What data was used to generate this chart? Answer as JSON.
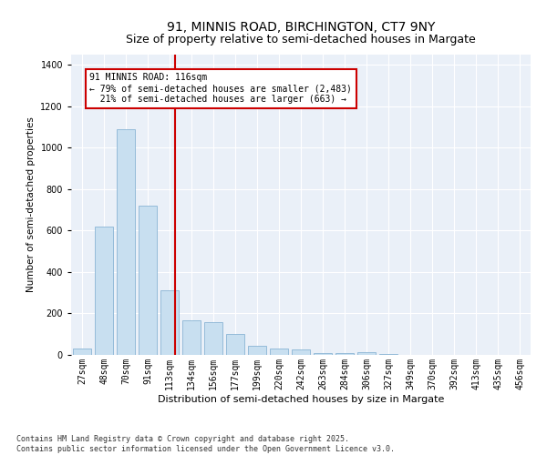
{
  "title1": "91, MINNIS ROAD, BIRCHINGTON, CT7 9NY",
  "title2": "Size of property relative to semi-detached houses in Margate",
  "xlabel": "Distribution of semi-detached houses by size in Margate",
  "ylabel": "Number of semi-detached properties",
  "categories": [
    "27sqm",
    "48sqm",
    "70sqm",
    "91sqm",
    "113sqm",
    "134sqm",
    "156sqm",
    "177sqm",
    "199sqm",
    "220sqm",
    "242sqm",
    "263sqm",
    "284sqm",
    "306sqm",
    "327sqm",
    "349sqm",
    "370sqm",
    "392sqm",
    "413sqm",
    "435sqm",
    "456sqm"
  ],
  "values": [
    30,
    620,
    1090,
    720,
    310,
    165,
    160,
    100,
    45,
    32,
    28,
    10,
    8,
    14,
    3,
    2,
    1,
    1,
    0,
    0,
    0
  ],
  "bar_color": "#c8dff0",
  "bar_edge_color": "#8ab4d4",
  "vline_color": "#cc0000",
  "vline_pos": 4.27,
  "annotation_line1": "91 MINNIS ROAD: 116sqm",
  "annotation_line2": "← 79% of semi-detached houses are smaller (2,483)",
  "annotation_line3": "  21% of semi-detached houses are larger (663) →",
  "annotation_box_color": "#ffffff",
  "annotation_box_edge": "#cc0000",
  "ylim": [
    0,
    1450
  ],
  "yticks": [
    0,
    200,
    400,
    600,
    800,
    1000,
    1200,
    1400
  ],
  "background_color": "#eaf0f8",
  "footer_text": "Contains HM Land Registry data © Crown copyright and database right 2025.\nContains public sector information licensed under the Open Government Licence v3.0.",
  "title_fontsize": 10,
  "tick_fontsize": 7,
  "ylabel_fontsize": 7.5,
  "xlabel_fontsize": 8,
  "ann_fontsize": 7
}
